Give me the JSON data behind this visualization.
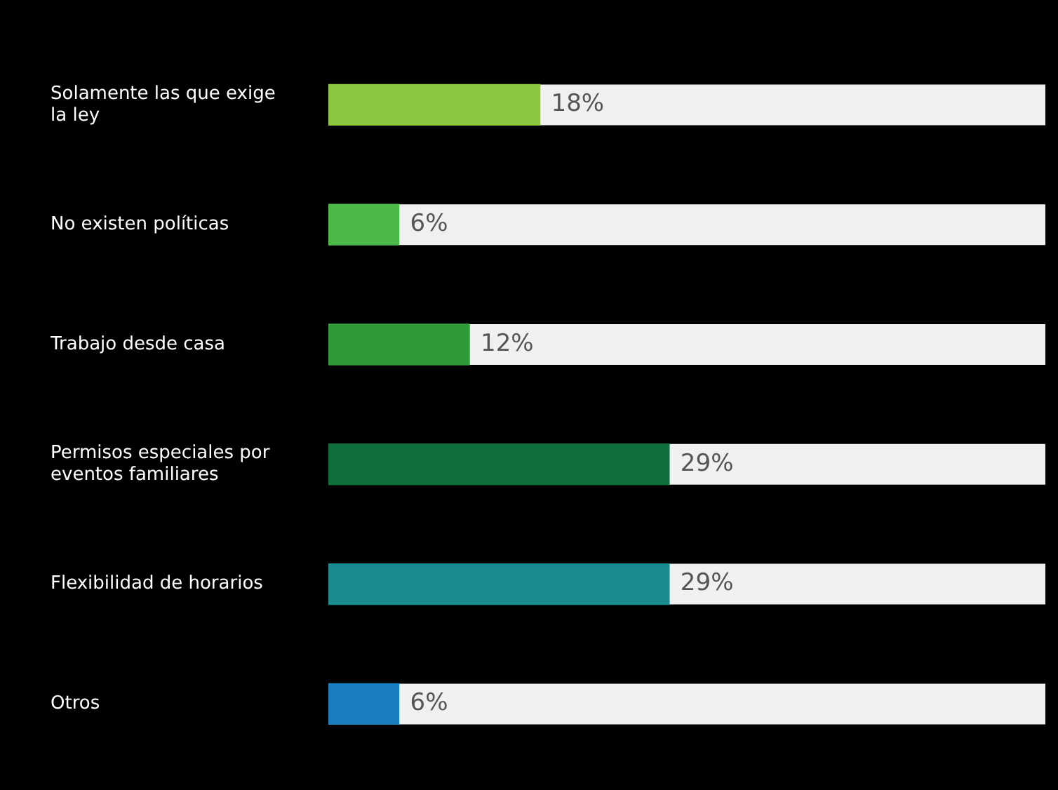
{
  "chart_data": {
    "type": "bar",
    "orientation": "horizontal",
    "categories": [
      "Solamente las que exige la ley",
      "No existen políticas",
      "Trabajo desde casa",
      "Permisos especiales por eventos familiares",
      "Flexibilidad de horarios",
      "Otros"
    ],
    "values": [
      18,
      6,
      12,
      29,
      29,
      6
    ],
    "colors": [
      "#8dc63f",
      "#4cb848",
      "#2e9a38",
      "#0f6e3c",
      "#1a8a8f",
      "#1a7ebf"
    ],
    "value_labels": [
      "18%",
      "6%",
      "12%",
      "29%",
      "29%",
      "6%"
    ],
    "xlim": [
      0,
      61
    ],
    "tick_labels": "y"
  }
}
